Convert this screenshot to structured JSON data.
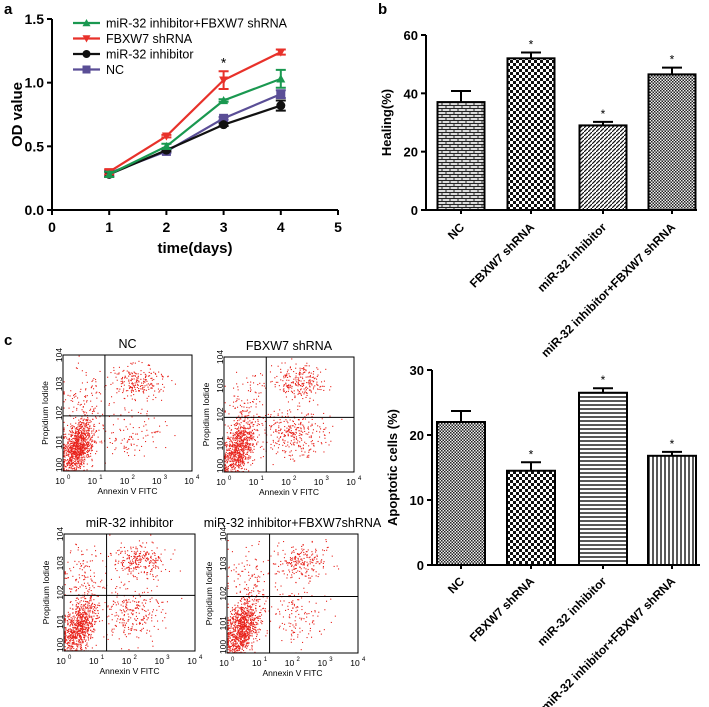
{
  "panel_labels": {
    "a": "a",
    "b": "b",
    "c": "c"
  },
  "colors": {
    "green": "#1a9850",
    "red": "#e8312a",
    "black": "#111111",
    "purple": "#5a4e96",
    "dots": "#e8231c"
  },
  "chart_data": [
    {
      "type": "line",
      "title": "",
      "xlabel": "time(days)",
      "ylabel": "OD value",
      "xlim": [
        0,
        5
      ],
      "ylim": [
        0,
        1.5
      ],
      "xticks": [
        "0",
        "1",
        "2",
        "3",
        "4",
        "5"
      ],
      "yticks": [
        "0.0",
        "0.5",
        "1.0",
        "1.5"
      ],
      "legend": "top-left",
      "x": [
        1,
        2,
        3,
        4
      ],
      "series": [
        {
          "name": "miR-32 inhibitor+FBXW7 shRNA",
          "color": "green",
          "marker": "triangle-up",
          "values": [
            0.28,
            0.5,
            0.86,
            1.03
          ],
          "errors": [
            0.02,
            0.02,
            0.01,
            0.07
          ]
        },
        {
          "name": "FBXW7 shRNA",
          "color": "red",
          "marker": "triangle-down",
          "values": [
            0.3,
            0.58,
            1.02,
            1.24
          ],
          "errors": [
            0.02,
            0.01,
            0.07,
            0.02
          ]
        },
        {
          "name": "miR-32 inhibitor",
          "color": "black",
          "marker": "circle",
          "values": [
            0.28,
            0.47,
            0.67,
            0.82
          ],
          "errors": [
            0.02,
            0.01,
            0.01,
            0.04
          ]
        },
        {
          "name": "NC",
          "color": "purple",
          "marker": "square",
          "values": [
            0.29,
            0.46,
            0.72,
            0.91
          ],
          "errors": [
            0.02,
            0.01,
            0.01,
            0.03
          ]
        }
      ],
      "annotations": [
        {
          "x": 3,
          "text": "*"
        }
      ]
    },
    {
      "type": "bar",
      "title": "",
      "ylabel": "Healing(%)",
      "ylim": [
        0,
        60
      ],
      "yticks": [
        "0",
        "20",
        "40",
        "60"
      ],
      "categories": [
        "NC",
        "FBXW7 shRNA",
        "miR-32 inhibitor",
        "miR-32 inhibitor+FBXW7 shRNA"
      ],
      "values": [
        37,
        52,
        29,
        46.5
      ],
      "errors": [
        3.8,
        2,
        1.2,
        2.3
      ],
      "significance": [
        "",
        "*",
        "*",
        "*"
      ]
    },
    {
      "type": "bar",
      "title": "",
      "ylabel": "Apoptotic cells (%)",
      "ylim": [
        0,
        30
      ],
      "yticks": [
        "0",
        "10",
        "20",
        "30"
      ],
      "categories": [
        "NC",
        "FBXW7 shRNA",
        "miR-32 inhibitor",
        "miR-32 inhibitor+FBXW7 shRNA"
      ],
      "values": [
        22,
        14.5,
        26.5,
        16.8
      ],
      "errors": [
        1.7,
        1.3,
        0.7,
        0.6
      ],
      "significance": [
        "",
        "*",
        "*",
        "*"
      ]
    },
    {
      "type": "scatter",
      "subplots": [
        {
          "title": "NC",
          "quadrants_pct": {
            "ll": 70,
            "lr": 8,
            "ul": 6,
            "ur": 16
          }
        },
        {
          "title": "FBXW7 shRNA",
          "quadrants_pct": {
            "ll": 55,
            "lr": 22,
            "ul": 6,
            "ur": 17
          }
        },
        {
          "title": "miR-32 inhibitor",
          "quadrants_pct": {
            "ll": 55,
            "lr": 18,
            "ul": 9,
            "ur": 18
          }
        },
        {
          "title": "miR-32 inhibitor+FBXW7shRNA",
          "quadrants_pct": {
            "ll": 68,
            "lr": 10,
            "ul": 6,
            "ur": 16
          }
        }
      ],
      "xlabel": "Annexin V FITC",
      "ylabel": "Propidium Iodide",
      "log_ticks": [
        "0",
        "1",
        "2",
        "3",
        "4"
      ],
      "tick_base": "10"
    }
  ]
}
